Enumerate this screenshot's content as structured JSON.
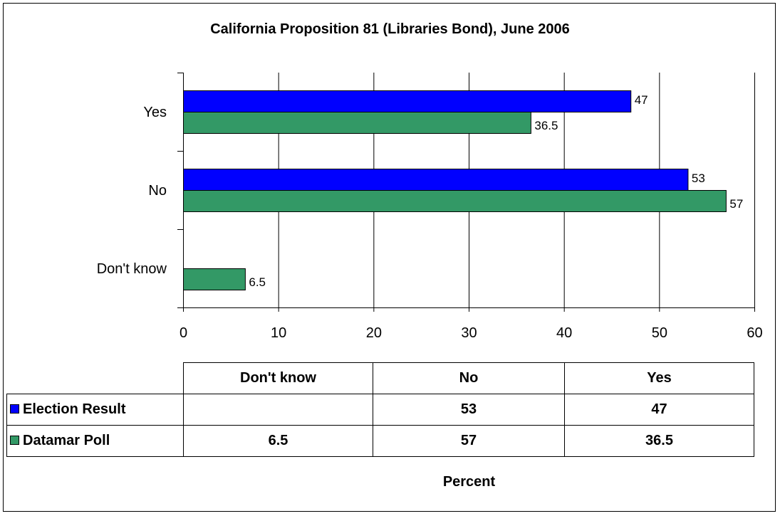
{
  "chart_data": {
    "type": "bar",
    "orientation": "horizontal",
    "title": "California Proposition 81 (Libraries Bond), June 2006",
    "categories": [
      "Yes",
      "No",
      "Don't know"
    ],
    "series": [
      {
        "name": "Election Result",
        "color": "#0000ff",
        "values": [
          47,
          53,
          null
        ],
        "labels": [
          "47",
          "53",
          ""
        ]
      },
      {
        "name": "Datamar Poll",
        "color": "#339966",
        "values": [
          36.5,
          57,
          6.5
        ],
        "labels": [
          "36.5",
          "57",
          "6.5"
        ]
      }
    ],
    "xlim": [
      0,
      60
    ],
    "xticks": [
      "0",
      "10",
      "20",
      "30",
      "40",
      "50",
      "60"
    ],
    "xlabel": "Percent",
    "ylabel": "",
    "grid": true,
    "legend": "data-table",
    "data_table": {
      "columns": [
        "Don't know",
        "No",
        "Yes"
      ],
      "rows": [
        {
          "name": "Election Result",
          "cells": [
            "",
            "53",
            "47"
          ]
        },
        {
          "name": "Datamar Poll",
          "cells": [
            "6.5",
            "57",
            "36.5"
          ]
        }
      ]
    }
  }
}
